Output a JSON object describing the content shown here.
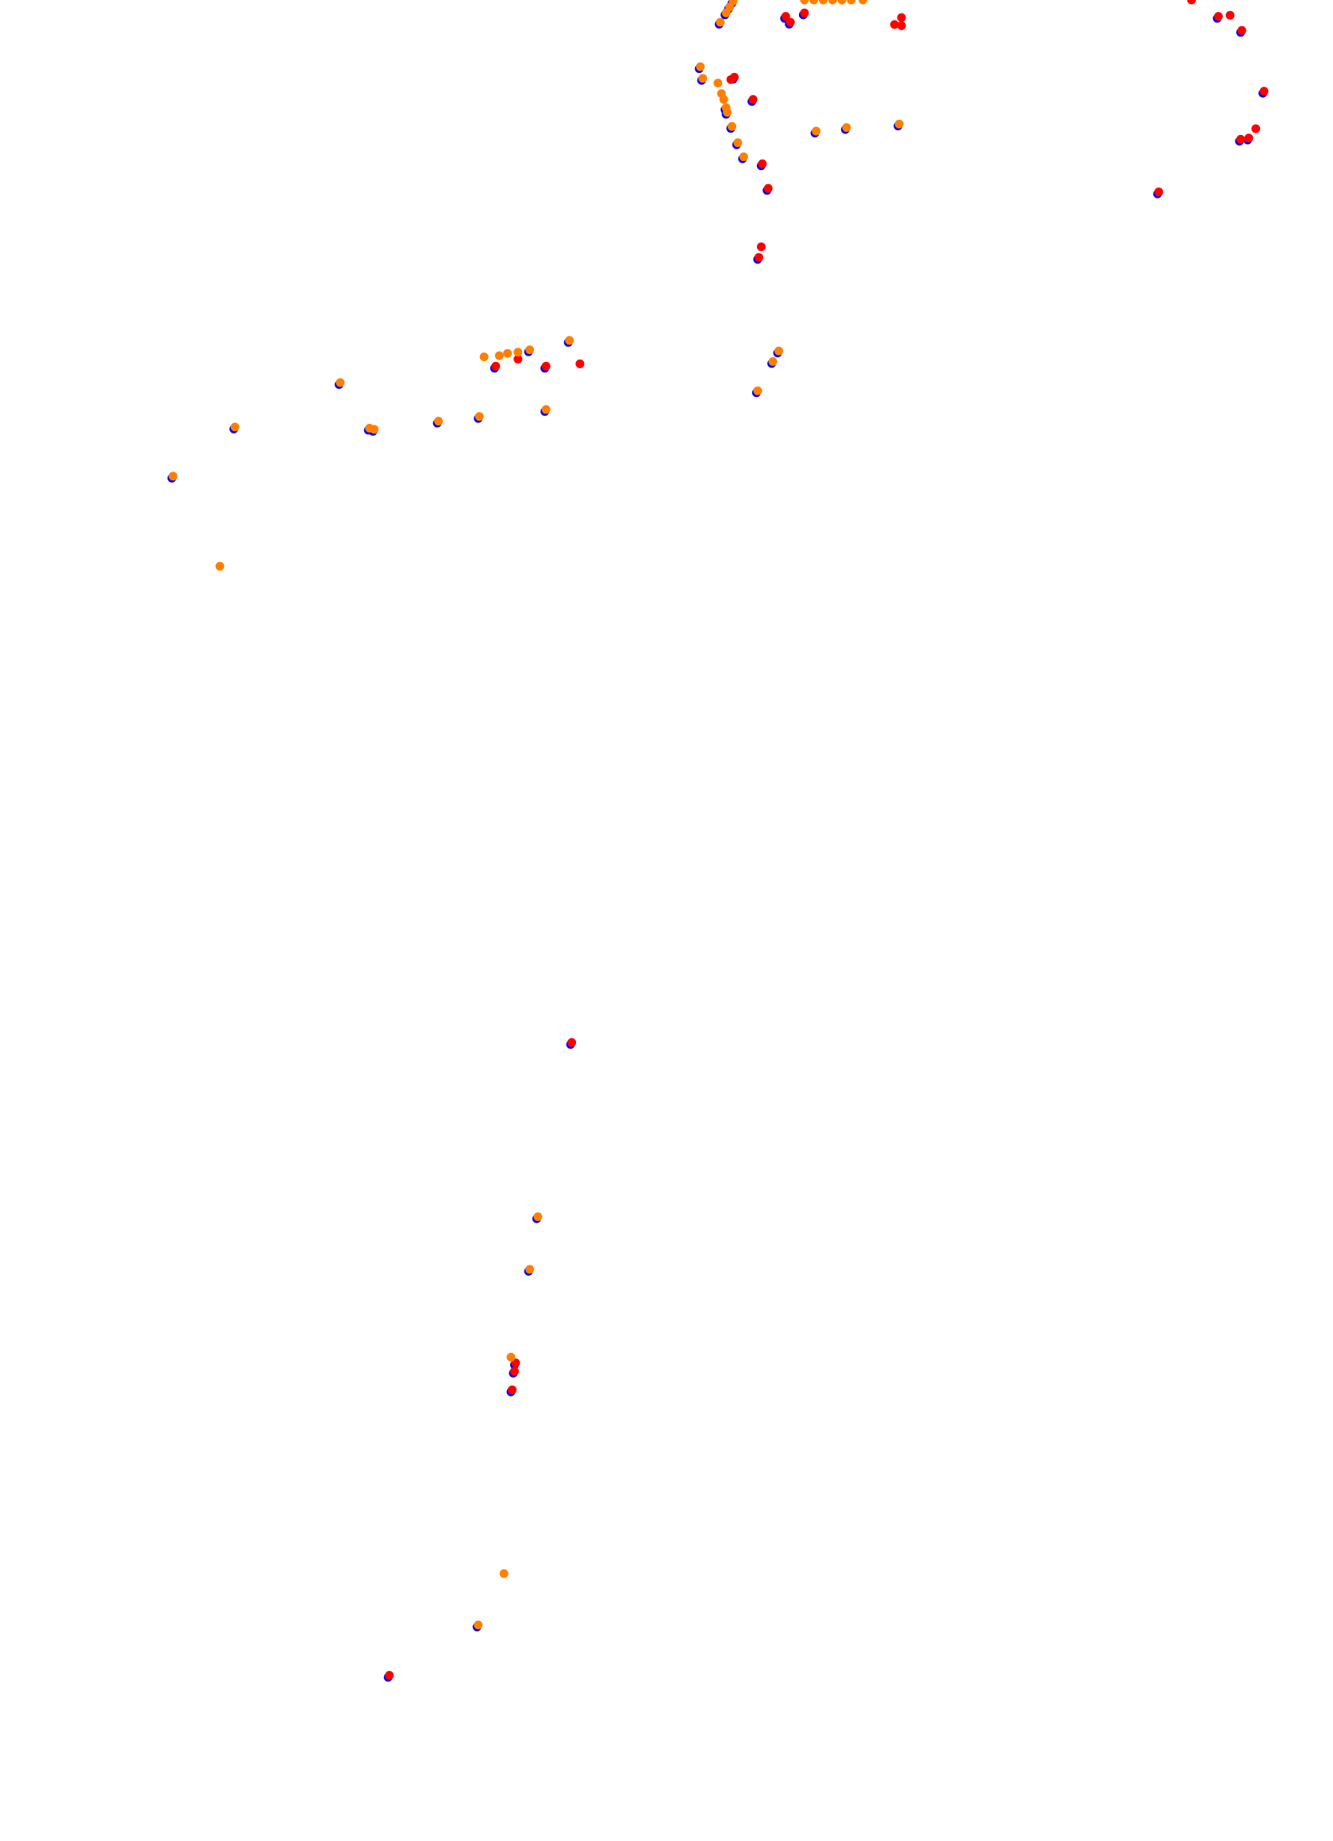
{
  "chart_data": {
    "type": "scatter",
    "title": "",
    "xlabel": "",
    "ylabel": "",
    "axes_visible": false,
    "grid": false,
    "legend": "none",
    "series": [
      {
        "color": "#0000ff",
        "points": [
          [
            627,
            1
          ],
          [
            624,
            6
          ],
          [
            621,
            11
          ],
          [
            616,
            19
          ],
          [
            672,
            14
          ],
          [
            676,
            19
          ],
          [
            688,
            11
          ],
          [
            1042,
            14
          ],
          [
            1062,
            26
          ],
          [
            599,
            57
          ],
          [
            601,
            67
          ],
          [
            621,
            92
          ],
          [
            622,
            96
          ],
          [
            628,
            66
          ],
          [
            644,
            85
          ],
          [
            626,
            108
          ],
          [
            631,
            122
          ],
          [
            636,
            134
          ],
          [
            652,
            140
          ],
          [
            657,
            161
          ],
          [
            698,
            112
          ],
          [
            724,
            109
          ],
          [
            769,
            106
          ],
          [
            1081,
            78
          ],
          [
            1061,
            119
          ],
          [
            1068,
            118
          ],
          [
            991,
            164
          ],
          [
            649,
            220
          ],
          [
            487,
            291
          ],
          [
            467,
            313
          ],
          [
            453,
            299
          ],
          [
            424,
            313
          ],
          [
            291,
            327
          ],
          [
            201,
            365
          ],
          [
            316,
            366
          ],
          [
            320,
            367
          ],
          [
            375,
            360
          ],
          [
            410,
            356
          ],
          [
            467,
            350
          ],
          [
            148,
            407
          ],
          [
            666,
            300
          ],
          [
            661,
            309
          ],
          [
            648,
            334
          ],
          [
            489,
            891
          ],
          [
            460,
            1040
          ],
          [
            453,
            1085
          ],
          [
            441,
            1165
          ],
          [
            440,
            1172
          ],
          [
            438,
            1188
          ],
          [
            409,
            1389
          ],
          [
            333,
            1432
          ]
        ]
      },
      {
        "color": "#ff0000",
        "points": [
          [
            672,
            14
          ],
          [
            676,
            19
          ],
          [
            688,
            11
          ],
          [
            765,
            21
          ],
          [
            771,
            15
          ],
          [
            771,
            22
          ],
          [
            1019,
            0
          ],
          [
            1042,
            14
          ],
          [
            1052,
            13
          ],
          [
            1062,
            26
          ],
          [
            625,
            68
          ],
          [
            628,
            66
          ],
          [
            644,
            85
          ],
          [
            652,
            140
          ],
          [
            657,
            161
          ],
          [
            1081,
            78
          ],
          [
            1074,
            110
          ],
          [
            1068,
            118
          ],
          [
            1061,
            119
          ],
          [
            991,
            164
          ],
          [
            651,
            211
          ],
          [
            649,
            220
          ],
          [
            496,
            311
          ],
          [
            467,
            313
          ],
          [
            443,
            307
          ],
          [
            424,
            313
          ],
          [
            489,
            891
          ],
          [
            441,
            1165
          ],
          [
            440,
            1172
          ],
          [
            438,
            1188
          ],
          [
            333,
            1432
          ]
        ]
      },
      {
        "color": "#ff8000",
        "points": [
          [
            627,
            1
          ],
          [
            624,
            6
          ],
          [
            621,
            11
          ],
          [
            616,
            19
          ],
          [
            688,
            0
          ],
          [
            696,
            0
          ],
          [
            704,
            0
          ],
          [
            712,
            0
          ],
          [
            720,
            0
          ],
          [
            728,
            0
          ],
          [
            738,
            0
          ],
          [
            599,
            57
          ],
          [
            601,
            67
          ],
          [
            614,
            71
          ],
          [
            617,
            80
          ],
          [
            619,
            85
          ],
          [
            621,
            92
          ],
          [
            622,
            96
          ],
          [
            626,
            108
          ],
          [
            631,
            122
          ],
          [
            636,
            134
          ],
          [
            698,
            112
          ],
          [
            724,
            109
          ],
          [
            769,
            106
          ],
          [
            487,
            291
          ],
          [
            453,
            299
          ],
          [
            443,
            301
          ],
          [
            434,
            302
          ],
          [
            427,
            304
          ],
          [
            414,
            305
          ],
          [
            291,
            327
          ],
          [
            201,
            365
          ],
          [
            316,
            366
          ],
          [
            320,
            367
          ],
          [
            375,
            360
          ],
          [
            410,
            356
          ],
          [
            467,
            350
          ],
          [
            148,
            407
          ],
          [
            188,
            484
          ],
          [
            666,
            300
          ],
          [
            661,
            309
          ],
          [
            648,
            334
          ],
          [
            460,
            1040
          ],
          [
            453,
            1085
          ],
          [
            437,
            1160
          ],
          [
            431,
            1345
          ],
          [
            409,
            1389
          ]
        ]
      }
    ]
  }
}
